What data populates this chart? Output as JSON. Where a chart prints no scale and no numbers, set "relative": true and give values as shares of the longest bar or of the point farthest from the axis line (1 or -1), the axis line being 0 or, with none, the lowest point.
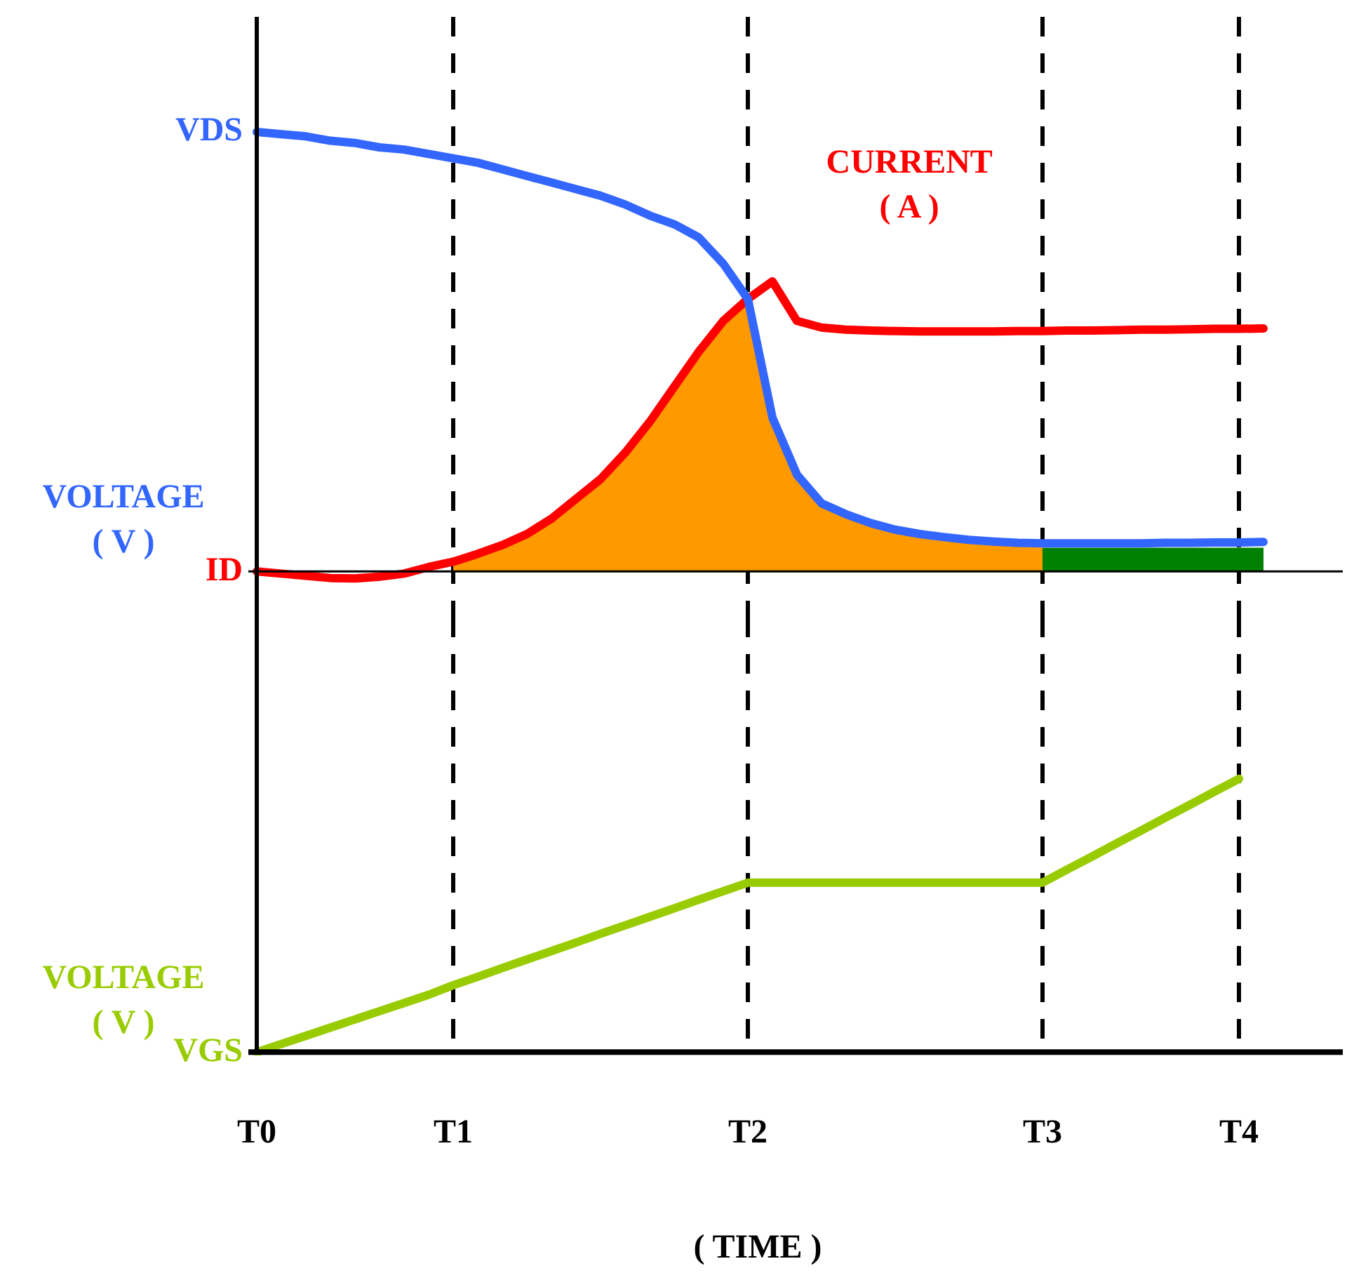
{
  "chart_data": [
    {
      "type": "line",
      "relative": true,
      "tick_labels": false,
      "ylabel": "VOLTAGE\n( V )",
      "annotations": [
        "CURRENT\n( A )"
      ],
      "categories": [
        "T0",
        null,
        null,
        null,
        null,
        null,
        null,
        null,
        "T1",
        null,
        null,
        null,
        null,
        null,
        null,
        null,
        null,
        null,
        null,
        null,
        "T2",
        null,
        null,
        null,
        null,
        null,
        null,
        null,
        null,
        null,
        null,
        null,
        "T3",
        null,
        null,
        null,
        null,
        null,
        null,
        null,
        "T4",
        null,
        null,
        null,
        null
      ],
      "ref_lines": [
        {
          "axis": "x",
          "value": "T1",
          "color": "#000000",
          "line_style": "dashed"
        },
        {
          "axis": "x",
          "value": "T2",
          "color": "#000000",
          "line_style": "dashed"
        },
        {
          "axis": "x",
          "value": "T3",
          "color": "#000000",
          "line_style": "dashed"
        },
        {
          "axis": "x",
          "value": "T4",
          "color": "#000000",
          "line_style": "dashed"
        }
      ],
      "series": [
        {
          "name": "VDS",
          "type": "line",
          "color": "#3366ff",
          "values": [
            1.0,
            0.995,
            0.99,
            0.98,
            0.975,
            0.965,
            0.96,
            0.95,
            0.94,
            0.93,
            0.915,
            0.9,
            0.885,
            0.87,
            0.855,
            0.835,
            0.81,
            0.79,
            0.76,
            0.7,
            0.62,
            0.35,
            0.22,
            0.155,
            0.13,
            0.11,
            0.095,
            0.085,
            0.078,
            0.072,
            0.068,
            0.065,
            0.064,
            0.064,
            0.064,
            0.064,
            0.064,
            0.065,
            0.065,
            0.066,
            0.066,
            0.067,
            null,
            null,
            null
          ]
        },
        {
          "name": "ID",
          "type": "line",
          "color": "#ff0000",
          "values": [
            0,
            -0.005,
            -0.01,
            -0.015,
            -0.016,
            -0.012,
            -0.005,
            0.01,
            0.022,
            0.04,
            0.06,
            0.085,
            0.12,
            0.165,
            0.21,
            0.27,
            0.34,
            0.42,
            0.5,
            0.57,
            0.62,
            0.66,
            0.57,
            0.555,
            0.55,
            0.548,
            0.547,
            0.546,
            0.546,
            0.546,
            0.546,
            0.547,
            0.547,
            0.548,
            0.548,
            0.549,
            0.55,
            0.55,
            0.551,
            0.552,
            0.552,
            0.553,
            null,
            null,
            null
          ]
        },
        {
          "type": "area",
          "color": "#ff9900",
          "values": [
            null,
            null,
            null,
            null,
            null,
            null,
            null,
            null,
            0.02,
            0.04,
            0.06,
            0.085,
            0.12,
            0.165,
            0.21,
            0.27,
            0.34,
            0.42,
            0.5,
            0.57,
            0.61,
            0.35,
            0.21,
            0.15,
            0.125,
            0.105,
            0.09,
            0.08,
            0.073,
            0.067,
            0.063,
            0.06,
            0.058,
            null,
            null,
            null,
            null,
            null,
            null,
            null,
            null,
            null,
            null,
            null,
            null
          ]
        },
        {
          "type": "area",
          "color": "#008000",
          "values": [
            null,
            null,
            null,
            null,
            null,
            null,
            null,
            null,
            null,
            null,
            null,
            null,
            null,
            null,
            null,
            null,
            null,
            null,
            null,
            null,
            null,
            null,
            null,
            null,
            null,
            null,
            null,
            null,
            null,
            null,
            null,
            null,
            0.054,
            0.054,
            0.054,
            0.054,
            0.054,
            0.054,
            0.054,
            0.054,
            0.054,
            0.054,
            null,
            null,
            null
          ]
        }
      ]
    },
    {
      "type": "line",
      "relative": true,
      "tick_labels": "x",
      "ylabel": "VOLTAGE\n( V )",
      "xlabel": "( TIME )",
      "categories": [
        "T0",
        null,
        null,
        null,
        null,
        null,
        null,
        null,
        "T1",
        null,
        null,
        null,
        null,
        null,
        null,
        null,
        null,
        null,
        null,
        null,
        "T2",
        null,
        null,
        null,
        null,
        null,
        null,
        null,
        null,
        null,
        null,
        null,
        "T3",
        null,
        null,
        null,
        null,
        null,
        null,
        null,
        "T4",
        null,
        null,
        null,
        null
      ],
      "ref_lines": [
        {
          "axis": "x",
          "value": "T1",
          "color": "#000000",
          "line_style": "dashed"
        },
        {
          "axis": "x",
          "value": "T2",
          "color": "#000000",
          "line_style": "dashed"
        },
        {
          "axis": "x",
          "value": "T3",
          "color": "#000000",
          "line_style": "dashed"
        },
        {
          "axis": "x",
          "value": "T4",
          "color": "#000000",
          "line_style": "dashed"
        }
      ],
      "series": [
        {
          "name": "VGS",
          "type": "line",
          "color": "#99cc00",
          "values": [
            0,
            0.03,
            0.06,
            0.09,
            0.12,
            0.15,
            0.18,
            0.21,
            0.245,
            0.276,
            0.308,
            0.339,
            0.37,
            0.401,
            0.433,
            0.464,
            0.495,
            0.526,
            0.558,
            0.589,
            0.62,
            0.62,
            0.62,
            0.62,
            0.62,
            0.62,
            0.62,
            0.62,
            0.62,
            0.62,
            0.62,
            0.62,
            0.62,
            0.668,
            0.715,
            0.763,
            0.81,
            0.858,
            0.905,
            0.953,
            1.0,
            null,
            null,
            null,
            null
          ]
        }
      ]
    }
  ]
}
